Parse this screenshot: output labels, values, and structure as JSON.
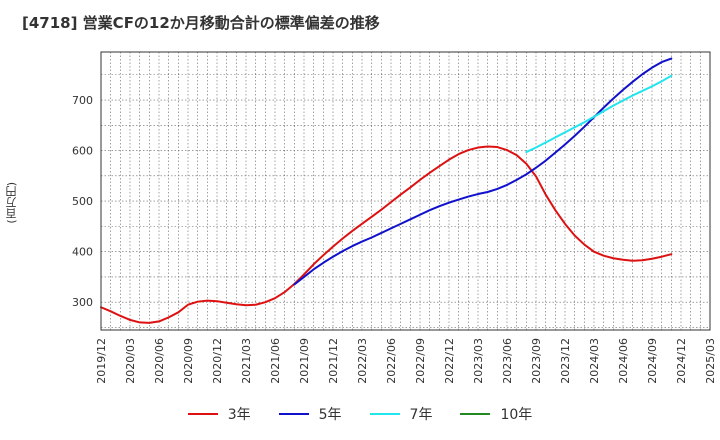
{
  "title": "[4718]  営業CFの12か月移動合計の標準偏差の推移",
  "chart_data": {
    "type": "line",
    "title": "[4718]  営業CFの12か月移動合計の標準偏差の推移",
    "ylabel": "(百万円)",
    "xlabel": "",
    "ylim": [
      245,
      795
    ],
    "yticks": [
      300,
      400,
      500,
      600,
      700
    ],
    "x_range": [
      "2019/12",
      "2025/03"
    ],
    "xticks": [
      "2019/12",
      "2020/03",
      "2020/06",
      "2020/09",
      "2020/12",
      "2021/03",
      "2021/06",
      "2021/09",
      "2021/12",
      "2022/03",
      "2022/06",
      "2022/09",
      "2022/12",
      "2023/03",
      "2023/06",
      "2023/09",
      "2023/12",
      "2024/03",
      "2024/06",
      "2024/09",
      "2024/12",
      "2025/03"
    ],
    "grid": true,
    "legend_position": "bottom",
    "series": [
      {
        "name": "3年",
        "color": "#dd1111",
        "points": [
          [
            "2019/12",
            290
          ],
          [
            "2020/01",
            282
          ],
          [
            "2020/02",
            273
          ],
          [
            "2020/03",
            265
          ],
          [
            "2020/04",
            260
          ],
          [
            "2020/05",
            259
          ],
          [
            "2020/06",
            262
          ],
          [
            "2020/07",
            270
          ],
          [
            "2020/08",
            280
          ],
          [
            "2020/09",
            295
          ],
          [
            "2020/10",
            301
          ],
          [
            "2020/11",
            303
          ],
          [
            "2020/12",
            302
          ],
          [
            "2021/01",
            299
          ],
          [
            "2021/02",
            296
          ],
          [
            "2021/03",
            294
          ],
          [
            "2021/04",
            295
          ],
          [
            "2021/05",
            300
          ],
          [
            "2021/06",
            308
          ],
          [
            "2021/07",
            320
          ],
          [
            "2021/08",
            336
          ],
          [
            "2021/09",
            355
          ],
          [
            "2021/10",
            375
          ],
          [
            "2021/11",
            393
          ],
          [
            "2021/12",
            410
          ],
          [
            "2022/01",
            426
          ],
          [
            "2022/02",
            441
          ],
          [
            "2022/03",
            455
          ],
          [
            "2022/04",
            469
          ],
          [
            "2022/05",
            483
          ],
          [
            "2022/06",
            498
          ],
          [
            "2022/07",
            513
          ],
          [
            "2022/08",
            527
          ],
          [
            "2022/09",
            542
          ],
          [
            "2022/10",
            556
          ],
          [
            "2022/11",
            569
          ],
          [
            "2022/12",
            582
          ],
          [
            "2023/01",
            593
          ],
          [
            "2023/02",
            601
          ],
          [
            "2023/03",
            606
          ],
          [
            "2023/04",
            608
          ],
          [
            "2023/05",
            607
          ],
          [
            "2023/06",
            601
          ],
          [
            "2023/07",
            591
          ],
          [
            "2023/08",
            574
          ],
          [
            "2023/09",
            549
          ],
          [
            "2023/10",
            513
          ],
          [
            "2023/11",
            482
          ],
          [
            "2023/12",
            455
          ],
          [
            "2024/01",
            432
          ],
          [
            "2024/02",
            414
          ],
          [
            "2024/03",
            400
          ],
          [
            "2024/04",
            392
          ],
          [
            "2024/05",
            387
          ],
          [
            "2024/06",
            384
          ],
          [
            "2024/07",
            382
          ],
          [
            "2024/08",
            383
          ],
          [
            "2024/09",
            386
          ],
          [
            "2024/10",
            390
          ],
          [
            "2024/11",
            395
          ]
        ]
      },
      {
        "name": "5年",
        "color": "#1111cc",
        "points": [
          [
            "2021/08",
            335
          ],
          [
            "2021/09",
            350
          ],
          [
            "2021/10",
            365
          ],
          [
            "2021/11",
            378
          ],
          [
            "2021/12",
            390
          ],
          [
            "2022/01",
            401
          ],
          [
            "2022/02",
            411
          ],
          [
            "2022/03",
            420
          ],
          [
            "2022/04",
            428
          ],
          [
            "2022/05",
            437
          ],
          [
            "2022/06",
            446
          ],
          [
            "2022/07",
            455
          ],
          [
            "2022/08",
            464
          ],
          [
            "2022/09",
            473
          ],
          [
            "2022/10",
            482
          ],
          [
            "2022/11",
            490
          ],
          [
            "2022/12",
            497
          ],
          [
            "2023/01",
            503
          ],
          [
            "2023/02",
            509
          ],
          [
            "2023/03",
            514
          ],
          [
            "2023/04",
            518
          ],
          [
            "2023/05",
            524
          ],
          [
            "2023/06",
            532
          ],
          [
            "2023/07",
            542
          ],
          [
            "2023/08",
            553
          ],
          [
            "2023/09",
            566
          ],
          [
            "2023/10",
            580
          ],
          [
            "2023/11",
            596
          ],
          [
            "2023/12",
            612
          ],
          [
            "2024/01",
            629
          ],
          [
            "2024/02",
            647
          ],
          [
            "2024/03",
            666
          ],
          [
            "2024/04",
            685
          ],
          [
            "2024/05",
            703
          ],
          [
            "2024/06",
            720
          ],
          [
            "2024/07",
            736
          ],
          [
            "2024/08",
            751
          ],
          [
            "2024/09",
            764
          ],
          [
            "2024/10",
            775
          ],
          [
            "2024/11",
            782
          ]
        ]
      },
      {
        "name": "7年",
        "color": "#22e5ee",
        "points": [
          [
            "2023/08",
            597
          ],
          [
            "2023/09",
            606
          ],
          [
            "2023/10",
            616
          ],
          [
            "2023/11",
            626
          ],
          [
            "2023/12",
            636
          ],
          [
            "2024/01",
            646
          ],
          [
            "2024/02",
            656
          ],
          [
            "2024/03",
            667
          ],
          [
            "2024/04",
            678
          ],
          [
            "2024/05",
            689
          ],
          [
            "2024/06",
            699
          ],
          [
            "2024/07",
            709
          ],
          [
            "2024/08",
            718
          ],
          [
            "2024/09",
            727
          ],
          [
            "2024/10",
            737
          ],
          [
            "2024/11",
            748
          ]
        ]
      },
      {
        "name": "10年",
        "color": "#228822",
        "points": []
      }
    ]
  }
}
